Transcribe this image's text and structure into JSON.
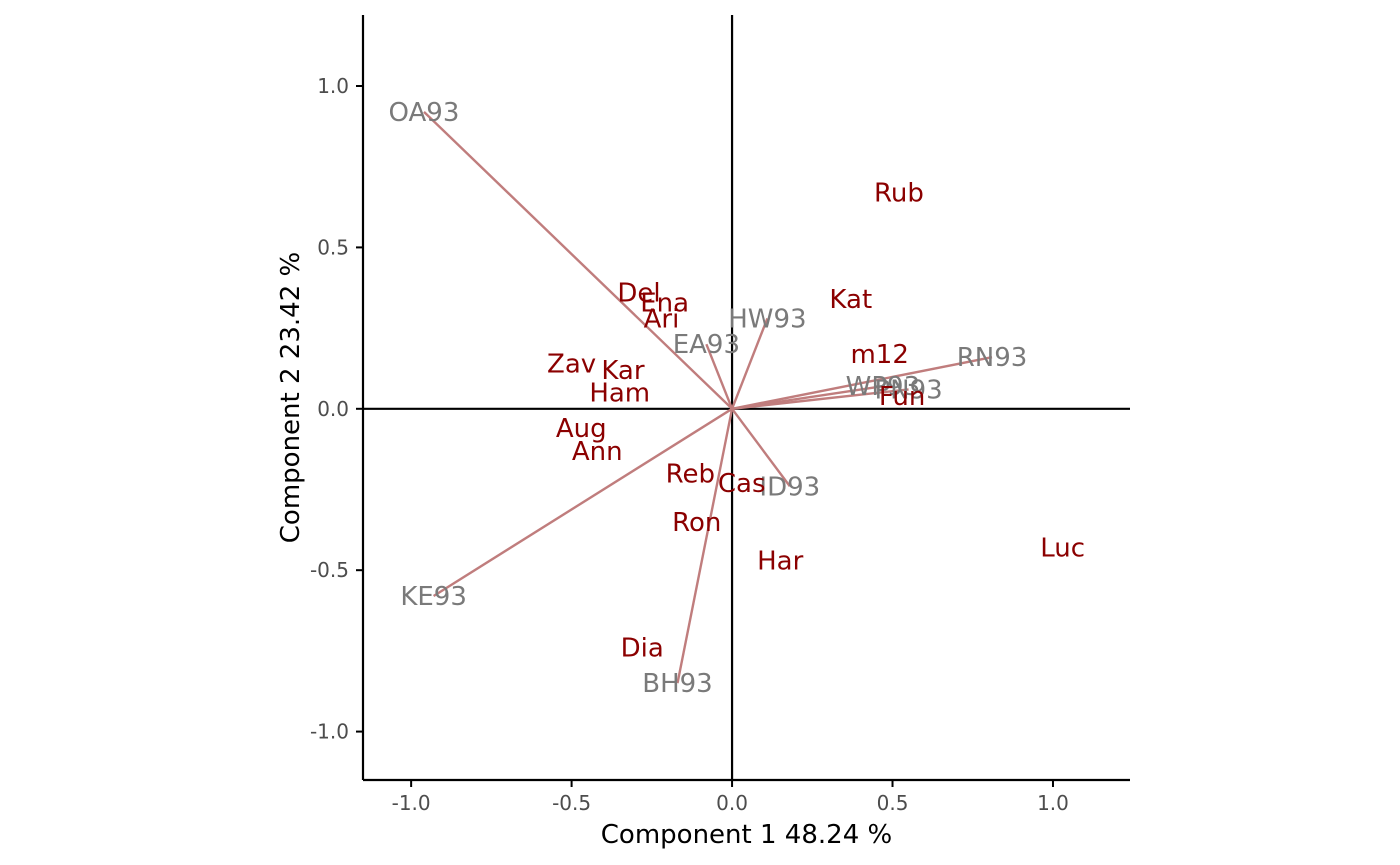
{
  "chart_data": {
    "type": "scatter",
    "subtype": "biplot",
    "xlabel": "Component 1 48.24 %",
    "ylabel": "Component 2 23.42 %",
    "xlim": [
      -1.15,
      1.24
    ],
    "ylim": [
      -1.15,
      1.22
    ],
    "xticks": [
      -1.0,
      -0.5,
      0.0,
      0.5,
      1.0
    ],
    "yticks": [
      -1.0,
      -0.5,
      0.0,
      0.5,
      1.0
    ],
    "xtick_labels": [
      "-1.0",
      "-0.5",
      "0.0",
      "0.5",
      "1.0"
    ],
    "ytick_labels": [
      "-1.0",
      "-0.5",
      "0.0",
      "0.5",
      "1.0"
    ],
    "grid": false,
    "reference_lines": {
      "x": 0,
      "y": 0
    },
    "colors": {
      "observation_label": "#8b0000",
      "variable_label": "#7a7a7a",
      "loading_arrow": "#c07d7d",
      "axis": "#000000"
    },
    "observations": [
      {
        "label": "Rub",
        "x": 0.52,
        "y": 0.67
      },
      {
        "label": "Kat",
        "x": 0.37,
        "y": 0.34
      },
      {
        "label": "Del",
        "x": -0.29,
        "y": 0.36
      },
      {
        "label": "Ena",
        "x": -0.21,
        "y": 0.33
      },
      {
        "label": "Ari",
        "x": -0.22,
        "y": 0.28
      },
      {
        "label": "m12",
        "x": 0.46,
        "y": 0.17
      },
      {
        "label": "Zav",
        "x": -0.5,
        "y": 0.14
      },
      {
        "label": "Kar",
        "x": -0.34,
        "y": 0.12
      },
      {
        "label": "Ham",
        "x": -0.35,
        "y": 0.05
      },
      {
        "label": "Fun",
        "x": 0.53,
        "y": 0.04
      },
      {
        "label": "Aug",
        "x": -0.47,
        "y": -0.06
      },
      {
        "label": "Ann",
        "x": -0.42,
        "y": -0.13
      },
      {
        "label": "Reb",
        "x": -0.13,
        "y": -0.2
      },
      {
        "label": "Cas",
        "x": 0.03,
        "y": -0.23
      },
      {
        "label": "Ron",
        "x": -0.11,
        "y": -0.35
      },
      {
        "label": "Har",
        "x": 0.15,
        "y": -0.47
      },
      {
        "label": "Luc",
        "x": 1.03,
        "y": -0.43
      },
      {
        "label": "Dia",
        "x": -0.28,
        "y": -0.74
      }
    ],
    "variables": [
      {
        "label": "OA93",
        "x": -0.96,
        "y": 0.92
      },
      {
        "label": "HW93",
        "x": 0.11,
        "y": 0.28
      },
      {
        "label": "EA93",
        "x": -0.08,
        "y": 0.2
      },
      {
        "label": "RN93",
        "x": 0.81,
        "y": 0.16
      },
      {
        "label": "WP93",
        "x": 0.47,
        "y": 0.07
      },
      {
        "label": "PN93",
        "x": 0.55,
        "y": 0.06
      },
      {
        "label": "ID93",
        "x": 0.18,
        "y": -0.24
      },
      {
        "label": "KE93",
        "x": -0.93,
        "y": -0.58
      },
      {
        "label": "BH93",
        "x": -0.17,
        "y": -0.85
      }
    ]
  }
}
